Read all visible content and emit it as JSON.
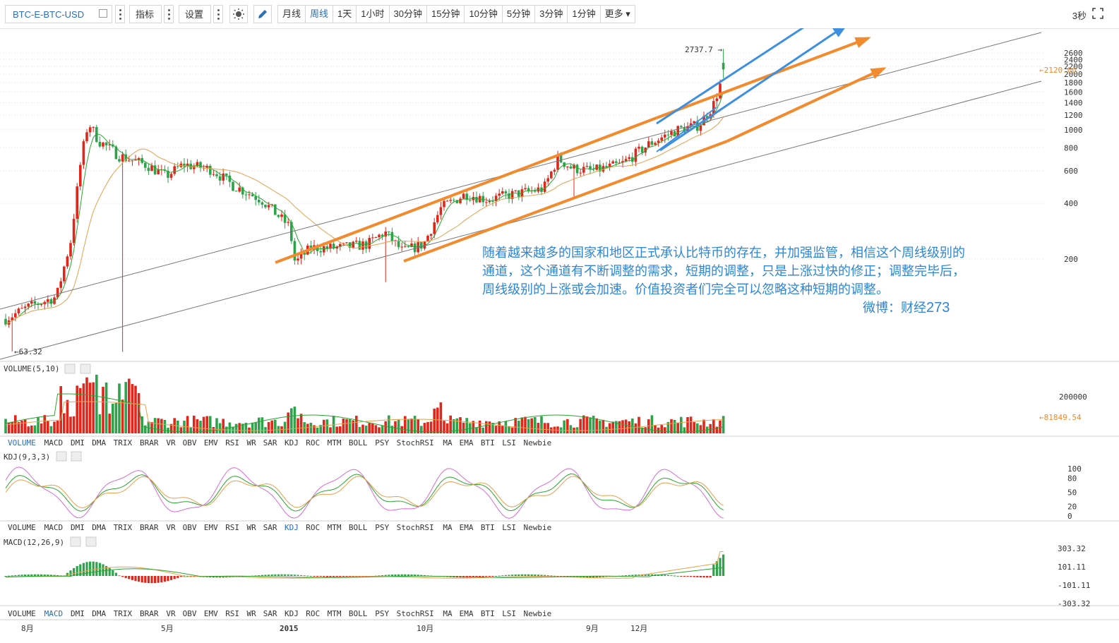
{
  "toolbar": {
    "symbol": "BTC-E-BTC-USD",
    "indicator_label": "指标",
    "settings_label": "设置",
    "periods": [
      "月线",
      "周线",
      "1天",
      "1小时",
      "30分钟",
      "15分钟",
      "10分钟",
      "5分钟",
      "3分钟",
      "1分钟",
      "更多"
    ],
    "active_period": "周线",
    "refresh": "3秒"
  },
  "annotation": {
    "text_lines": [
      "随着越来越多的国家和地区正式承认比特币的存在，并加强监管，相信这个周线级别的",
      "通道，这个通道有不断调整的需求，短期的调整，只是上涨过快的修正；调整完毕后，",
      "周线级别的上涨或会加速。价值投资者们完全可以忽略这种短期的调整。"
    ],
    "weibo_label": "微博：财经",
    "weibo_num": "273"
  },
  "colors": {
    "up": "#e1261c",
    "down": "#2fa24c",
    "ma_fast": "#2aa531",
    "ma_slow": "#e8a04b",
    "arrow_orange": "#f28a2e",
    "arrow_blue": "#3d8fe0",
    "kdj_j": "#d86bd8",
    "macd_line": "#e8a04b",
    "signal_line": "#2aa531",
    "active_tab": "#2a6ebd"
  },
  "indicator_tabs": [
    "VOLUME",
    "MACD",
    "DMI",
    "DMA",
    "TRIX",
    "BRAR",
    "VR",
    "OBV",
    "EMV",
    "RSI",
    "WR",
    "SAR",
    "KDJ",
    "ROC",
    "MTM",
    "BOLL",
    "PSY",
    "StochRSI",
    "MA",
    "EMA",
    "BTI",
    "LSI",
    "Newbie"
  ],
  "chart_data": [
    {
      "type": "candlestick",
      "price_axis_ticks": [
        2600,
        2400,
        2200,
        2000,
        1800,
        1600,
        1400,
        1200,
        1000,
        800,
        600,
        400,
        200
      ],
      "scale": "log",
      "annotations": {
        "high_label": "2737.7 →",
        "low_label": "←63.32",
        "last_price_tag": "←2120.00"
      },
      "x_axis_labels": [
        "8月",
        "5月",
        "2015",
        "10月",
        "9月",
        "12月"
      ],
      "trend_channel_lines": 2,
      "arrows": {
        "orange": 3,
        "blue": 2
      }
    },
    {
      "type": "bar",
      "title": "VOLUME(5,10)",
      "ticks": [
        "200000"
      ],
      "last_tag": "←81849.54"
    },
    {
      "type": "line",
      "title": "KDJ(9,3,3)",
      "ticks": [
        "100",
        "80",
        "50",
        "20",
        "0"
      ],
      "ylim": [
        0,
        100
      ]
    },
    {
      "type": "bar",
      "title": "MACD(12,26,9)",
      "ticks": [
        "303.32",
        "101.11",
        "-101.11",
        "-303.32"
      ],
      "ylim": [
        -303.32,
        303.32
      ]
    }
  ],
  "panels": {
    "volume_title": "VOLUME(5,10)",
    "kdj_title": "KDJ(9,3,3)",
    "macd_title": "MACD(12,26,9)",
    "active_tab_volume": "VOLUME",
    "active_tab_kdj": "KDJ",
    "active_tab_macd": "MACD"
  }
}
